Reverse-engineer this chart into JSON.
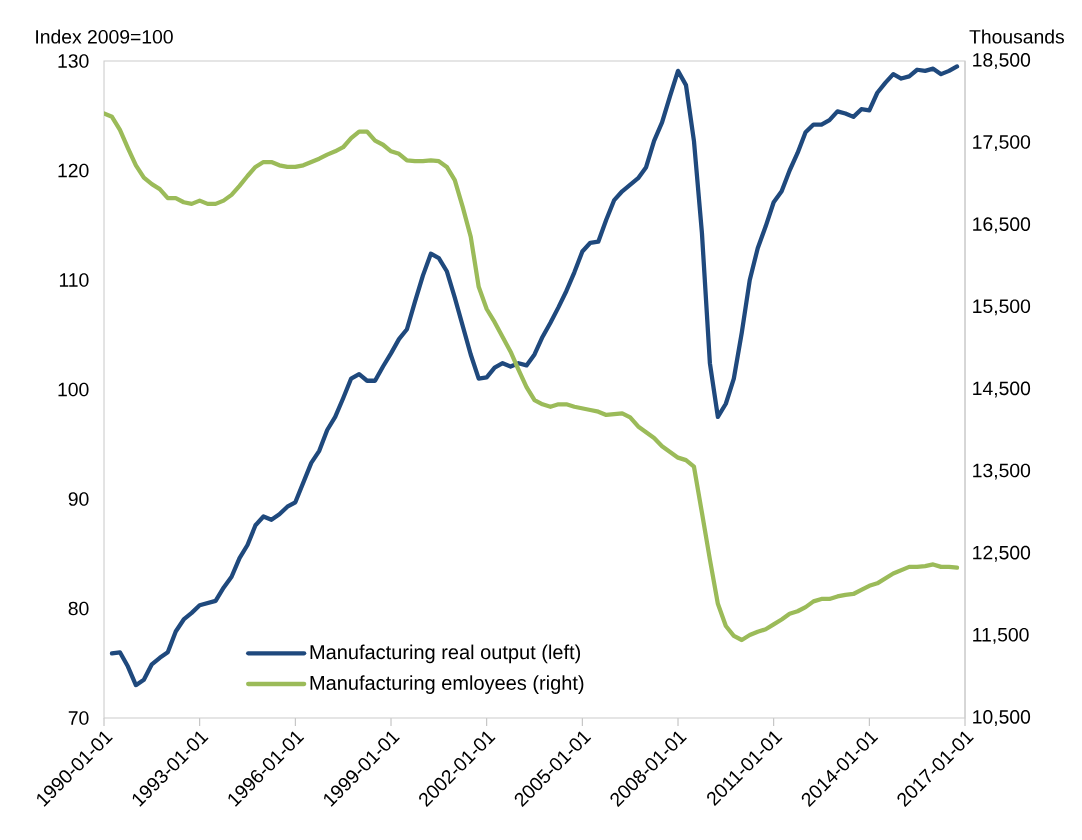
{
  "chart_data": {
    "type": "line",
    "ylabel": "Index 2009=100",
    "y2label": "Thousands",
    "xlim": [
      "1990-01-01",
      "2017-01-01"
    ],
    "xticks": [
      "1990-01-01",
      "1993-01-01",
      "1996-01-01",
      "1999-01-01",
      "2002-01-01",
      "2005-01-01",
      "2008-01-01",
      "2011-01-01",
      "2014-01-01",
      "2017-01-01"
    ],
    "ylim": [
      70,
      130
    ],
    "yticks": [
      70,
      80,
      90,
      100,
      110,
      120,
      130
    ],
    "y2lim": [
      10500,
      18500
    ],
    "y2ticks": [
      {
        "value": 10500,
        "label": "10,500"
      },
      {
        "value": 11500,
        "label": "11,500"
      },
      {
        "value": 12500,
        "label": "12,500"
      },
      {
        "value": 13500,
        "label": "13,500"
      },
      {
        "value": 14500,
        "label": "14,500"
      },
      {
        "value": 15500,
        "label": "15,500"
      },
      {
        "value": 16500,
        "label": "16,500"
      },
      {
        "value": 17500,
        "label": "17,500"
      },
      {
        "value": 18500,
        "label": "18,500"
      }
    ],
    "legend": "bottom",
    "series": [
      {
        "name": "Manufacturing real output (left)",
        "color": "#1f497d",
        "axis": "y",
        "x": [
          "1990-04",
          "1990-07",
          "1990-10",
          "1991-01",
          "1991-04",
          "1991-07",
          "1991-10",
          "1992-01",
          "1992-04",
          "1992-07",
          "1992-10",
          "1993-01",
          "1993-04",
          "1993-07",
          "1993-10",
          "1994-01",
          "1994-04",
          "1994-07",
          "1994-10",
          "1995-01",
          "1995-04",
          "1995-07",
          "1995-10",
          "1996-01",
          "1996-04",
          "1996-07",
          "1996-10",
          "1997-01",
          "1997-04",
          "1997-07",
          "1997-10",
          "1998-01",
          "1998-04",
          "1998-07",
          "1998-10",
          "1999-01",
          "1999-04",
          "1999-07",
          "1999-10",
          "2000-01",
          "2000-04",
          "2000-07",
          "2000-10",
          "2001-01",
          "2001-04",
          "2001-07",
          "2001-10",
          "2002-01",
          "2002-04",
          "2002-07",
          "2002-10",
          "2003-01",
          "2003-04",
          "2003-07",
          "2003-10",
          "2004-01",
          "2004-04",
          "2004-07",
          "2004-10",
          "2005-01",
          "2005-04",
          "2005-07",
          "2005-10",
          "2006-01",
          "2006-04",
          "2006-07",
          "2006-10",
          "2007-01",
          "2007-04",
          "2007-07",
          "2007-10",
          "2008-01",
          "2008-04",
          "2008-07",
          "2008-10",
          "2009-01",
          "2009-04",
          "2009-07",
          "2009-10",
          "2010-01",
          "2010-04",
          "2010-07",
          "2010-10",
          "2011-01",
          "2011-04",
          "2011-07",
          "2011-10",
          "2012-01",
          "2012-04",
          "2012-07",
          "2012-10",
          "2013-01",
          "2013-04",
          "2013-07",
          "2013-10",
          "2014-01",
          "2014-04",
          "2014-07",
          "2014-10",
          "2015-01",
          "2015-04",
          "2015-07",
          "2015-10",
          "2016-01",
          "2016-04",
          "2016-07",
          "2016-10"
        ],
        "values": [
          75.9,
          76.0,
          74.7,
          73.0,
          73.5,
          74.9,
          75.5,
          76.0,
          77.9,
          79.0,
          79.6,
          80.3,
          80.5,
          80.7,
          81.9,
          82.9,
          84.6,
          85.8,
          87.6,
          88.4,
          88.1,
          88.6,
          89.3,
          89.7,
          91.5,
          93.3,
          94.4,
          96.3,
          97.5,
          99.2,
          101.0,
          101.4,
          100.8,
          100.8,
          102.1,
          103.3,
          104.6,
          105.5,
          108.0,
          110.4,
          112.4,
          112.0,
          110.8,
          108.4,
          105.8,
          103.2,
          101.0,
          101.1,
          102.0,
          102.4,
          102.1,
          102.4,
          102.2,
          103.2,
          104.8,
          106.1,
          107.5,
          109.0,
          110.7,
          112.6,
          113.4,
          113.5,
          115.5,
          117.3,
          118.1,
          118.7,
          119.3,
          120.3,
          122.7,
          124.4,
          126.8,
          129.1,
          127.8,
          122.7,
          114.3,
          102.4,
          97.5,
          98.7,
          101.0,
          105.2,
          110.0,
          112.9,
          114.9,
          117.1,
          118.1,
          120.0,
          121.6,
          123.5,
          124.2,
          124.2,
          124.6,
          125.4,
          125.2,
          124.9,
          125.6,
          125.5,
          127.1,
          128.0,
          128.8,
          128.4,
          128.6,
          129.2,
          129.1,
          129.3,
          128.8,
          129.1,
          129.5
        ]
      },
      {
        "name": "Manufacturing emloyees (right)",
        "color": "#9bbb59",
        "axis": "y2",
        "x": [
          "1990-01",
          "1990-04",
          "1990-07",
          "1990-10",
          "1991-01",
          "1991-04",
          "1991-07",
          "1991-10",
          "1992-01",
          "1992-04",
          "1992-07",
          "1992-10",
          "1993-01",
          "1993-04",
          "1993-07",
          "1993-10",
          "1994-01",
          "1994-04",
          "1994-07",
          "1994-10",
          "1995-01",
          "1995-04",
          "1995-07",
          "1995-10",
          "1996-01",
          "1996-04",
          "1996-07",
          "1996-10",
          "1997-01",
          "1997-04",
          "1997-07",
          "1997-10",
          "1998-01",
          "1998-04",
          "1998-07",
          "1998-10",
          "1999-01",
          "1999-04",
          "1999-07",
          "1999-10",
          "2000-01",
          "2000-04",
          "2000-07",
          "2000-10",
          "2001-01",
          "2001-04",
          "2001-07",
          "2001-10",
          "2002-01",
          "2002-04",
          "2002-07",
          "2002-10",
          "2003-01",
          "2003-04",
          "2003-07",
          "2003-10",
          "2004-01",
          "2004-04",
          "2004-07",
          "2004-10",
          "2005-04",
          "2005-07",
          "2005-10",
          "2006-01",
          "2006-04",
          "2006-07",
          "2006-10",
          "2007-01",
          "2007-04",
          "2007-07",
          "2007-10",
          "2008-01",
          "2008-04",
          "2008-07",
          "2008-10",
          "2009-01",
          "2009-04",
          "2009-07",
          "2009-10",
          "2010-01",
          "2010-04",
          "2010-07",
          "2010-10",
          "2011-01",
          "2011-04",
          "2011-07",
          "2011-10",
          "2012-01",
          "2012-04",
          "2012-07",
          "2012-10",
          "2013-01",
          "2013-04",
          "2013-07",
          "2013-10",
          "2014-01",
          "2014-04",
          "2014-07",
          "2014-10",
          "2015-01",
          "2015-04",
          "2015-07",
          "2015-10",
          "2016-01",
          "2016-04",
          "2016-07",
          "2016-10"
        ],
        "values": [
          17860,
          17820,
          17660,
          17440,
          17230,
          17080,
          17000,
          16940,
          16830,
          16830,
          16780,
          16760,
          16800,
          16760,
          16760,
          16800,
          16870,
          16980,
          17100,
          17210,
          17270,
          17270,
          17230,
          17210,
          17210,
          17230,
          17270,
          17310,
          17360,
          17400,
          17450,
          17560,
          17640,
          17640,
          17530,
          17480,
          17400,
          17370,
          17290,
          17280,
          17280,
          17290,
          17280,
          17210,
          17050,
          16720,
          16360,
          15750,
          15480,
          15320,
          15140,
          14960,
          14740,
          14530,
          14370,
          14320,
          14290,
          14320,
          14320,
          14290,
          14250,
          14230,
          14190,
          14200,
          14210,
          14160,
          14050,
          13980,
          13910,
          13810,
          13740,
          13670,
          13640,
          13560,
          13000,
          12430,
          11890,
          11620,
          11500,
          11450,
          11510,
          11550,
          11580,
          11640,
          11700,
          11770,
          11800,
          11850,
          11920,
          11950,
          11950,
          11980,
          12000,
          12010,
          12060,
          12110,
          12140,
          12200,
          12260,
          12300,
          12340,
          12340,
          12350,
          12370,
          12340,
          12340,
          12330
        ]
      }
    ]
  }
}
